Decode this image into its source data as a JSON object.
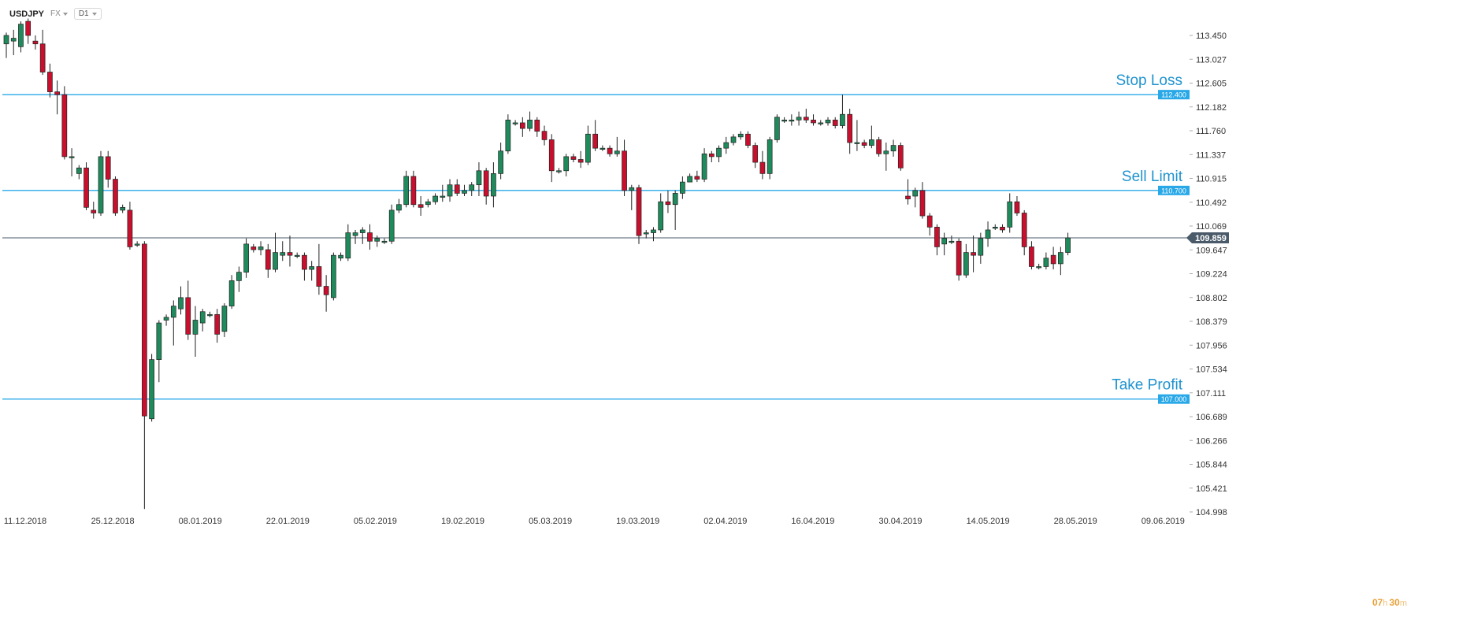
{
  "toolbar": {
    "symbol": "USDJPY",
    "market": "FX",
    "timeframe": "D1"
  },
  "timer": {
    "hours": "07",
    "hours_unit": "h",
    "minutes": "30",
    "minutes_unit": "m"
  },
  "colors": {
    "up": "#1f8a5c",
    "down": "#c8102e",
    "level_line": "#29a8e8",
    "current_price": "#4a5a68",
    "grid_text": "#333333"
  },
  "chart_data": {
    "type": "candlestick",
    "title": "",
    "y_ticks": [
      "113.450",
      "113.027",
      "112.605",
      "112.182",
      "111.760",
      "111.337",
      "110.915",
      "110.492",
      "110.069",
      "109.647",
      "109.224",
      "108.802",
      "108.379",
      "107.956",
      "107.534",
      "107.111",
      "106.689",
      "106.266",
      "105.844",
      "105.421",
      "104.998"
    ],
    "x_ticks": [
      "11.12.2018",
      "25.12.2018",
      "08.01.2019",
      "22.01.2019",
      "05.02.2019",
      "19.02.2019",
      "05.03.2019",
      "19.03.2019",
      "02.04.2019",
      "16.04.2019",
      "30.04.2019",
      "14.05.2019",
      "28.05.2019",
      "09.06.2019"
    ],
    "levels": [
      {
        "name": "Stop Loss",
        "price": 112.4,
        "label": "112.400"
      },
      {
        "name": "Sell Limit",
        "price": 110.7,
        "label": "110.700"
      },
      {
        "name": "Take Profit",
        "price": 107.0,
        "label": "107.000"
      }
    ],
    "current_price": {
      "price": 109.859,
      "label": "109.859"
    },
    "candles": [
      {
        "d": "11.12.2018",
        "o": 113.3,
        "h": 113.5,
        "l": 113.05,
        "c": 113.45
      },
      {
        "d": "12.12.2018",
        "o": 113.35,
        "h": 113.55,
        "l": 113.1,
        "c": 113.4
      },
      {
        "d": "13.12.2018",
        "o": 113.25,
        "h": 113.7,
        "l": 113.15,
        "c": 113.65
      },
      {
        "d": "14.12.2018",
        "o": 113.7,
        "h": 113.75,
        "l": 113.3,
        "c": 113.45
      },
      {
        "d": "15.12.2018",
        "o": 113.35,
        "h": 113.45,
        "l": 113.2,
        "c": 113.3
      },
      {
        "d": "17.12.2018",
        "o": 113.3,
        "h": 113.55,
        "l": 112.75,
        "c": 112.8
      },
      {
        "d": "18.12.2018",
        "o": 112.8,
        "h": 112.95,
        "l": 112.35,
        "c": 112.45
      },
      {
        "d": "19.12.2018",
        "o": 112.45,
        "h": 112.65,
        "l": 112.05,
        "c": 112.4
      },
      {
        "d": "20.12.2018",
        "o": 112.4,
        "h": 112.55,
        "l": 111.25,
        "c": 111.3
      },
      {
        "d": "21.12.2018",
        "o": 111.3,
        "h": 111.45,
        "l": 110.95,
        "c": 111.3
      },
      {
        "d": "22.12.2018",
        "o": 111.0,
        "h": 111.15,
        "l": 110.9,
        "c": 111.1
      },
      {
        "d": "24.12.2018",
        "o": 111.1,
        "h": 111.2,
        "l": 110.35,
        "c": 110.4
      },
      {
        "d": "25.12.2018",
        "o": 110.35,
        "h": 110.5,
        "l": 110.2,
        "c": 110.3
      },
      {
        "d": "26.12.2018",
        "o": 110.3,
        "h": 111.4,
        "l": 110.25,
        "c": 111.3
      },
      {
        "d": "27.12.2018",
        "o": 111.3,
        "h": 111.4,
        "l": 110.75,
        "c": 110.9
      },
      {
        "d": "28.12.2018",
        "o": 110.9,
        "h": 110.95,
        "l": 110.25,
        "c": 110.3
      },
      {
        "d": "29.12.2018",
        "o": 110.35,
        "h": 110.45,
        "l": 110.3,
        "c": 110.4
      },
      {
        "d": "31.12.2018",
        "o": 110.35,
        "h": 110.5,
        "l": 109.65,
        "c": 109.7
      },
      {
        "d": "01.01.2019",
        "o": 109.75,
        "h": 109.8,
        "l": 109.7,
        "c": 109.75
      },
      {
        "d": "02.01.2019",
        "o": 109.75,
        "h": 109.8,
        "l": 105.05,
        "c": 106.7
      },
      {
        "d": "03.01.2019",
        "o": 106.65,
        "h": 107.8,
        "l": 106.6,
        "c": 107.7
      },
      {
        "d": "04.01.2019",
        "o": 107.7,
        "h": 108.4,
        "l": 107.3,
        "c": 108.35
      },
      {
        "d": "06.01.2019",
        "o": 108.4,
        "h": 108.5,
        "l": 108.3,
        "c": 108.45
      },
      {
        "d": "07.01.2019",
        "o": 108.45,
        "h": 108.75,
        "l": 107.95,
        "c": 108.65
      },
      {
        "d": "08.01.2019",
        "o": 108.6,
        "h": 109.0,
        "l": 108.5,
        "c": 108.8
      },
      {
        "d": "09.01.2019",
        "o": 108.8,
        "h": 109.1,
        "l": 108.05,
        "c": 108.15
      },
      {
        "d": "10.01.2019",
        "o": 108.15,
        "h": 108.65,
        "l": 107.75,
        "c": 108.4
      },
      {
        "d": "11.01.2019",
        "o": 108.35,
        "h": 108.6,
        "l": 108.2,
        "c": 108.55
      },
      {
        "d": "13.01.2019",
        "o": 108.5,
        "h": 108.55,
        "l": 108.45,
        "c": 108.5
      },
      {
        "d": "14.01.2019",
        "o": 108.5,
        "h": 108.6,
        "l": 108.0,
        "c": 108.15
      },
      {
        "d": "15.01.2019",
        "o": 108.2,
        "h": 108.7,
        "l": 108.1,
        "c": 108.65
      },
      {
        "d": "16.01.2019",
        "o": 108.65,
        "h": 109.2,
        "l": 108.6,
        "c": 109.1
      },
      {
        "d": "17.01.2019",
        "o": 109.1,
        "h": 109.35,
        "l": 108.9,
        "c": 109.25
      },
      {
        "d": "18.01.2019",
        "o": 109.25,
        "h": 109.85,
        "l": 109.15,
        "c": 109.75
      },
      {
        "d": "20.01.2019",
        "o": 109.7,
        "h": 109.75,
        "l": 109.6,
        "c": 109.65
      },
      {
        "d": "21.01.2019",
        "o": 109.65,
        "h": 109.8,
        "l": 109.55,
        "c": 109.7
      },
      {
        "d": "22.01.2019",
        "o": 109.65,
        "h": 109.75,
        "l": 109.15,
        "c": 109.3
      },
      {
        "d": "23.01.2019",
        "o": 109.3,
        "h": 109.95,
        "l": 109.25,
        "c": 109.6
      },
      {
        "d": "24.01.2019",
        "o": 109.55,
        "h": 109.8,
        "l": 109.45,
        "c": 109.6
      },
      {
        "d": "25.01.2019",
        "o": 109.6,
        "h": 109.9,
        "l": 109.35,
        "c": 109.55
      },
      {
        "d": "27.01.2019",
        "o": 109.55,
        "h": 109.6,
        "l": 109.5,
        "c": 109.55
      },
      {
        "d": "28.01.2019",
        "o": 109.55,
        "h": 109.6,
        "l": 109.1,
        "c": 109.3
      },
      {
        "d": "29.01.2019",
        "o": 109.3,
        "h": 109.45,
        "l": 109.1,
        "c": 109.35
      },
      {
        "d": "30.01.2019",
        "o": 109.35,
        "h": 109.75,
        "l": 108.85,
        "c": 109.0
      },
      {
        "d": "31.01.2019",
        "o": 109.0,
        "h": 109.2,
        "l": 108.55,
        "c": 108.85
      },
      {
        "d": "01.02.2019",
        "o": 108.8,
        "h": 109.6,
        "l": 108.75,
        "c": 109.55
      },
      {
        "d": "03.02.2019",
        "o": 109.5,
        "h": 109.6,
        "l": 109.45,
        "c": 109.55
      },
      {
        "d": "04.02.2019",
        "o": 109.5,
        "h": 110.1,
        "l": 109.45,
        "c": 109.95
      },
      {
        "d": "05.02.2019",
        "o": 109.9,
        "h": 110.0,
        "l": 109.75,
        "c": 109.95
      },
      {
        "d": "06.02.2019",
        "o": 109.95,
        "h": 110.05,
        "l": 109.75,
        "c": 110.0
      },
      {
        "d": "07.02.2019",
        "o": 109.95,
        "h": 110.1,
        "l": 109.65,
        "c": 109.8
      },
      {
        "d": "08.02.2019",
        "o": 109.8,
        "h": 109.9,
        "l": 109.7,
        "c": 109.85
      },
      {
        "d": "10.02.2019",
        "o": 109.8,
        "h": 109.85,
        "l": 109.75,
        "c": 109.8
      },
      {
        "d": "11.02.2019",
        "o": 109.8,
        "h": 110.45,
        "l": 109.75,
        "c": 110.35
      },
      {
        "d": "12.02.2019",
        "o": 110.35,
        "h": 110.55,
        "l": 110.3,
        "c": 110.45
      },
      {
        "d": "13.02.2019",
        "o": 110.45,
        "h": 111.05,
        "l": 110.4,
        "c": 110.95
      },
      {
        "d": "14.02.2019",
        "o": 110.95,
        "h": 111.05,
        "l": 110.4,
        "c": 110.45
      },
      {
        "d": "15.02.2019",
        "o": 110.45,
        "h": 110.6,
        "l": 110.25,
        "c": 110.4
      },
      {
        "d": "17.02.2019",
        "o": 110.45,
        "h": 110.55,
        "l": 110.4,
        "c": 110.5
      },
      {
        "d": "18.02.2019",
        "o": 110.5,
        "h": 110.65,
        "l": 110.45,
        "c": 110.6
      },
      {
        "d": "19.02.2019",
        "o": 110.6,
        "h": 110.8,
        "l": 110.5,
        "c": 110.6
      },
      {
        "d": "20.02.2019",
        "o": 110.6,
        "h": 110.9,
        "l": 110.5,
        "c": 110.8
      },
      {
        "d": "21.02.2019",
        "o": 110.8,
        "h": 110.9,
        "l": 110.6,
        "c": 110.65
      },
      {
        "d": "22.02.2019",
        "o": 110.65,
        "h": 110.8,
        "l": 110.6,
        "c": 110.7
      },
      {
        "d": "24.02.2019",
        "o": 110.7,
        "h": 110.85,
        "l": 110.6,
        "c": 110.8
      },
      {
        "d": "25.02.2019",
        "o": 110.8,
        "h": 111.2,
        "l": 110.6,
        "c": 111.05
      },
      {
        "d": "26.02.2019",
        "o": 111.05,
        "h": 111.1,
        "l": 110.45,
        "c": 110.6
      },
      {
        "d": "27.02.2019",
        "o": 110.6,
        "h": 111.2,
        "l": 110.4,
        "c": 111.0
      },
      {
        "d": "28.02.2019",
        "o": 111.0,
        "h": 111.55,
        "l": 110.9,
        "c": 111.4
      },
      {
        "d": "01.03.2019",
        "o": 111.4,
        "h": 112.05,
        "l": 111.35,
        "c": 111.95
      },
      {
        "d": "03.03.2019",
        "o": 111.9,
        "h": 111.95,
        "l": 111.85,
        "c": 111.9
      },
      {
        "d": "04.03.2019",
        "o": 111.9,
        "h": 112.0,
        "l": 111.65,
        "c": 111.8
      },
      {
        "d": "05.03.2019",
        "o": 111.8,
        "h": 112.1,
        "l": 111.75,
        "c": 111.95
      },
      {
        "d": "06.03.2019",
        "o": 111.95,
        "h": 112.0,
        "l": 111.65,
        "c": 111.75
      },
      {
        "d": "07.03.2019",
        "o": 111.75,
        "h": 111.85,
        "l": 111.5,
        "c": 111.6
      },
      {
        "d": "08.03.2019",
        "o": 111.6,
        "h": 111.7,
        "l": 110.85,
        "c": 111.05
      },
      {
        "d": "10.03.2019",
        "o": 111.05,
        "h": 111.1,
        "l": 111.0,
        "c": 111.05
      },
      {
        "d": "11.03.2019",
        "o": 111.05,
        "h": 111.35,
        "l": 110.95,
        "c": 111.3
      },
      {
        "d": "12.03.2019",
        "o": 111.3,
        "h": 111.35,
        "l": 111.2,
        "c": 111.25
      },
      {
        "d": "13.03.2019",
        "o": 111.25,
        "h": 111.4,
        "l": 111.1,
        "c": 111.2
      },
      {
        "d": "14.03.2019",
        "o": 111.2,
        "h": 111.85,
        "l": 111.15,
        "c": 111.7
      },
      {
        "d": "15.03.2019",
        "o": 111.7,
        "h": 111.95,
        "l": 111.4,
        "c": 111.45
      },
      {
        "d": "17.03.2019",
        "o": 111.45,
        "h": 111.5,
        "l": 111.4,
        "c": 111.45
      },
      {
        "d": "18.03.2019",
        "o": 111.45,
        "h": 111.5,
        "l": 111.3,
        "c": 111.35
      },
      {
        "d": "19.03.2019",
        "o": 111.35,
        "h": 111.65,
        "l": 111.3,
        "c": 111.4
      },
      {
        "d": "20.03.2019",
        "o": 111.4,
        "h": 111.6,
        "l": 110.6,
        "c": 110.7
      },
      {
        "d": "21.03.2019",
        "o": 110.7,
        "h": 110.8,
        "l": 110.35,
        "c": 110.75
      },
      {
        "d": "22.03.2019",
        "o": 110.75,
        "h": 110.8,
        "l": 109.75,
        "c": 109.9
      },
      {
        "d": "24.03.2019",
        "o": 109.95,
        "h": 110.0,
        "l": 109.85,
        "c": 109.95
      },
      {
        "d": "25.03.2019",
        "o": 109.95,
        "h": 110.05,
        "l": 109.8,
        "c": 110.0
      },
      {
        "d": "26.03.2019",
        "o": 110.0,
        "h": 110.65,
        "l": 109.95,
        "c": 110.5
      },
      {
        "d": "27.03.2019",
        "o": 110.5,
        "h": 110.7,
        "l": 110.3,
        "c": 110.45
      },
      {
        "d": "28.03.2019",
        "o": 110.45,
        "h": 110.7,
        "l": 110.0,
        "c": 110.65
      },
      {
        "d": "29.03.2019",
        "o": 110.65,
        "h": 110.95,
        "l": 110.55,
        "c": 110.85
      },
      {
        "d": "31.03.2019",
        "o": 110.85,
        "h": 111.0,
        "l": 110.85,
        "c": 110.95
      },
      {
        "d": "01.04.2019",
        "o": 110.95,
        "h": 111.05,
        "l": 110.85,
        "c": 110.9
      },
      {
        "d": "02.04.2019",
        "o": 110.9,
        "h": 111.45,
        "l": 110.85,
        "c": 111.35
      },
      {
        "d": "03.04.2019",
        "o": 111.35,
        "h": 111.4,
        "l": 111.2,
        "c": 111.3
      },
      {
        "d": "04.04.2019",
        "o": 111.3,
        "h": 111.5,
        "l": 111.2,
        "c": 111.45
      },
      {
        "d": "05.04.2019",
        "o": 111.45,
        "h": 111.65,
        "l": 111.35,
        "c": 111.55
      },
      {
        "d": "07.04.2019",
        "o": 111.55,
        "h": 111.7,
        "l": 111.5,
        "c": 111.65
      },
      {
        "d": "08.04.2019",
        "o": 111.65,
        "h": 111.75,
        "l": 111.6,
        "c": 111.7
      },
      {
        "d": "09.04.2019",
        "o": 111.7,
        "h": 111.75,
        "l": 111.45,
        "c": 111.5
      },
      {
        "d": "10.04.2019",
        "o": 111.5,
        "h": 111.55,
        "l": 111.1,
        "c": 111.2
      },
      {
        "d": "11.04.2019",
        "o": 111.2,
        "h": 111.4,
        "l": 110.9,
        "c": 111.0
      },
      {
        "d": "12.04.2019",
        "o": 111.0,
        "h": 111.65,
        "l": 110.9,
        "c": 111.6
      },
      {
        "d": "14.04.2019",
        "o": 111.6,
        "h": 112.05,
        "l": 111.55,
        "c": 112.0
      },
      {
        "d": "15.04.2019",
        "o": 111.95,
        "h": 112.0,
        "l": 111.9,
        "c": 111.95
      },
      {
        "d": "16.04.2019",
        "o": 111.95,
        "h": 112.05,
        "l": 111.85,
        "c": 111.95
      },
      {
        "d": "17.04.2019",
        "o": 111.95,
        "h": 112.1,
        "l": 111.85,
        "c": 112.0
      },
      {
        "d": "18.04.2019",
        "o": 112.0,
        "h": 112.15,
        "l": 111.9,
        "c": 111.95
      },
      {
        "d": "19.04.2019",
        "o": 111.95,
        "h": 112.05,
        "l": 111.85,
        "c": 111.9
      },
      {
        "d": "21.04.2019",
        "o": 111.9,
        "h": 111.95,
        "l": 111.85,
        "c": 111.9
      },
      {
        "d": "22.04.2019",
        "o": 111.9,
        "h": 112.0,
        "l": 111.85,
        "c": 111.95
      },
      {
        "d": "23.04.2019",
        "o": 111.95,
        "h": 112.0,
        "l": 111.8,
        "c": 111.85
      },
      {
        "d": "24.04.2019",
        "o": 111.85,
        "h": 112.4,
        "l": 111.8,
        "c": 112.05
      },
      {
        "d": "25.04.2019",
        "o": 112.05,
        "h": 112.15,
        "l": 111.35,
        "c": 111.55
      },
      {
        "d": "26.04.2019",
        "o": 111.55,
        "h": 111.95,
        "l": 111.4,
        "c": 111.55
      },
      {
        "d": "28.04.2019",
        "o": 111.55,
        "h": 111.6,
        "l": 111.45,
        "c": 111.5
      },
      {
        "d": "29.04.2019",
        "o": 111.5,
        "h": 111.85,
        "l": 111.45,
        "c": 111.6
      },
      {
        "d": "30.04.2019",
        "o": 111.6,
        "h": 111.65,
        "l": 111.3,
        "c": 111.35
      },
      {
        "d": "01.05.2019",
        "o": 111.35,
        "h": 111.55,
        "l": 111.05,
        "c": 111.4
      },
      {
        "d": "02.05.2019",
        "o": 111.4,
        "h": 111.6,
        "l": 111.3,
        "c": 111.5
      },
      {
        "d": "03.05.2019",
        "o": 111.5,
        "h": 111.55,
        "l": 111.05,
        "c": 111.1
      },
      {
        "d": "05.05.2019",
        "o": 110.6,
        "h": 110.9,
        "l": 110.45,
        "c": 110.55
      },
      {
        "d": "06.05.2019",
        "o": 110.6,
        "h": 110.75,
        "l": 110.4,
        "c": 110.7
      },
      {
        "d": "07.05.2019",
        "o": 110.7,
        "h": 110.85,
        "l": 110.2,
        "c": 110.25
      },
      {
        "d": "08.05.2019",
        "o": 110.25,
        "h": 110.3,
        "l": 109.9,
        "c": 110.05
      },
      {
        "d": "09.05.2019",
        "o": 110.05,
        "h": 110.1,
        "l": 109.55,
        "c": 109.7
      },
      {
        "d": "10.05.2019",
        "o": 109.75,
        "h": 109.95,
        "l": 109.55,
        "c": 109.85
      },
      {
        "d": "12.05.2019",
        "o": 109.8,
        "h": 109.9,
        "l": 109.75,
        "c": 109.8
      },
      {
        "d": "13.05.2019",
        "o": 109.8,
        "h": 109.85,
        "l": 109.1,
        "c": 109.2
      },
      {
        "d": "14.05.2019",
        "o": 109.2,
        "h": 109.75,
        "l": 109.15,
        "c": 109.6
      },
      {
        "d": "15.05.2019",
        "o": 109.6,
        "h": 109.9,
        "l": 109.25,
        "c": 109.55
      },
      {
        "d": "16.05.2019",
        "o": 109.55,
        "h": 109.95,
        "l": 109.4,
        "c": 109.85
      },
      {
        "d": "17.05.2019",
        "o": 109.85,
        "h": 110.15,
        "l": 109.7,
        "c": 110.0
      },
      {
        "d": "19.05.2019",
        "o": 110.05,
        "h": 110.1,
        "l": 110.0,
        "c": 110.05
      },
      {
        "d": "20.05.2019",
        "o": 110.05,
        "h": 110.1,
        "l": 109.95,
        "c": 110.0
      },
      {
        "d": "21.05.2019",
        "o": 110.05,
        "h": 110.65,
        "l": 109.95,
        "c": 110.5
      },
      {
        "d": "22.05.2019",
        "o": 110.5,
        "h": 110.6,
        "l": 110.25,
        "c": 110.3
      },
      {
        "d": "23.05.2019",
        "o": 110.3,
        "h": 110.35,
        "l": 109.55,
        "c": 109.7
      },
      {
        "d": "24.05.2019",
        "o": 109.7,
        "h": 109.8,
        "l": 109.3,
        "c": 109.35
      },
      {
        "d": "26.05.2019",
        "o": 109.35,
        "h": 109.4,
        "l": 109.3,
        "c": 109.35
      },
      {
        "d": "27.05.2019",
        "o": 109.35,
        "h": 109.6,
        "l": 109.3,
        "c": 109.5
      },
      {
        "d": "28.05.2019",
        "o": 109.55,
        "h": 109.7,
        "l": 109.3,
        "c": 109.4
      },
      {
        "d": "29.05.2019",
        "o": 109.4,
        "h": 109.7,
        "l": 109.2,
        "c": 109.6
      },
      {
        "d": "30.05.2019",
        "o": 109.6,
        "h": 109.95,
        "l": 109.55,
        "c": 109.859
      }
    ]
  }
}
